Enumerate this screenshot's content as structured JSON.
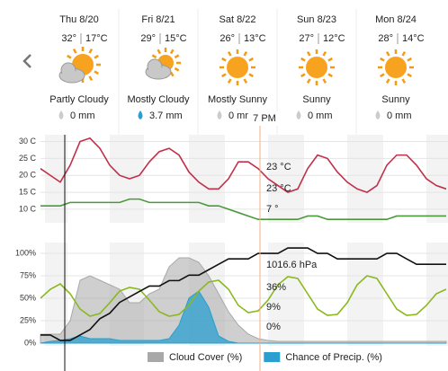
{
  "days": [
    {
      "name": "Thu 8/20",
      "high": "32°",
      "low": "17°C",
      "condition": "Partly Cloudy",
      "precip": "0 mm"
    },
    {
      "name": "Fri 8/21",
      "high": "29°",
      "low": "15°C",
      "condition": "Mostly Cloudy",
      "precip": "3.7 mm"
    },
    {
      "name": "Sat 8/22",
      "high": "26°",
      "low": "13°C",
      "condition": "Mostly Sunny",
      "precip": "0 mm"
    },
    {
      "name": "Sun 8/23",
      "high": "27°",
      "low": "12°C",
      "condition": "Sunny",
      "precip": "0 mm"
    },
    {
      "name": "Mon 8/24",
      "high": "28°",
      "low": "14°C",
      "condition": "Sunny",
      "precip": "0 mm"
    }
  ],
  "cursor": {
    "time": "7 PM",
    "labels": [
      {
        "text": "23 °C",
        "color": "#b0407a"
      },
      {
        "text": "23 °C",
        "color": "#c0304a"
      },
      {
        "text": "7 °",
        "color": "#4a9a3a"
      },
      {
        "text": "1016.6 hPa",
        "color": "#111111"
      },
      {
        "text": "36%",
        "color": "#8ab81e"
      },
      {
        "text": "9%",
        "color": "#888888"
      },
      {
        "text": "0%",
        "color": "#2a9fd0"
      }
    ]
  },
  "chart_data": [
    {
      "type": "line",
      "ylim": [
        6,
        32
      ],
      "yticks": [
        {
          "value": 30,
          "label": "30 C"
        },
        {
          "value": 25,
          "label": "25 C"
        },
        {
          "value": 20,
          "label": "20 C"
        },
        {
          "value": 15,
          "label": "15 C"
        },
        {
          "value": 10,
          "label": "10 C"
        }
      ],
      "series": [
        {
          "color": "#c0304a",
          "values": [
            22,
            20,
            18,
            23,
            30,
            31,
            28,
            23,
            20,
            19,
            20,
            24,
            27,
            28,
            26,
            21,
            18,
            16,
            16,
            19,
            24,
            24,
            22,
            19,
            17,
            15,
            16,
            22,
            26,
            25,
            21,
            18,
            16,
            15,
            17,
            23,
            26,
            26,
            23,
            19,
            17,
            16
          ]
        },
        {
          "color": "#4a9a3a",
          "values": [
            11,
            11,
            11,
            12,
            12,
            12,
            12,
            12,
            12,
            13,
            13,
            12,
            12,
            12,
            12,
            12,
            12,
            11,
            11,
            10,
            9,
            8,
            7,
            7,
            7,
            7,
            7,
            8,
            8,
            7,
            7,
            7,
            7,
            7,
            7,
            7,
            8,
            8,
            8,
            8,
            8,
            8
          ]
        }
      ]
    },
    {
      "type": "line",
      "ylim": [
        -3,
        112
      ],
      "y2lim": [
        1000,
        1019
      ],
      "yticks": [
        {
          "value": 100,
          "label": "100%"
        },
        {
          "value": 75,
          "label": "75%"
        },
        {
          "value": 50,
          "label": "50%"
        },
        {
          "value": 25,
          "label": "25%"
        },
        {
          "value": 0,
          "label": "0%"
        }
      ],
      "series": [
        {
          "name": "Cloud Cover (%)",
          "type": "area",
          "color": "#a8a8a8",
          "values": [
            10,
            10,
            10,
            25,
            70,
            75,
            70,
            65,
            60,
            45,
            45,
            55,
            60,
            85,
            95,
            95,
            90,
            75,
            55,
            35,
            20,
            10,
            5,
            3,
            2,
            2,
            2,
            2,
            2,
            2,
            2,
            2,
            2,
            2,
            2,
            2,
            2,
            2,
            2,
            2,
            2,
            2
          ]
        },
        {
          "name": "Chance of Precip. (%)",
          "type": "area",
          "color": "#2a9fd0",
          "values": [
            0,
            2,
            3,
            5,
            8,
            5,
            5,
            5,
            3,
            3,
            3,
            3,
            3,
            5,
            20,
            50,
            58,
            40,
            8,
            2,
            0,
            0,
            0,
            0,
            0,
            0,
            0,
            0,
            0,
            0,
            0,
            0,
            0,
            0,
            0,
            0,
            0,
            0,
            0,
            0,
            0,
            0
          ]
        },
        {
          "type": "line",
          "color": "#8ab81e",
          "values": [
            50,
            60,
            66,
            55,
            38,
            30,
            33,
            45,
            58,
            62,
            60,
            48,
            35,
            30,
            32,
            42,
            58,
            68,
            70,
            60,
            42,
            34,
            36,
            48,
            65,
            74,
            72,
            55,
            38,
            31,
            32,
            45,
            65,
            75,
            72,
            55,
            38,
            31,
            32,
            42,
            55,
            60
          ]
        },
        {
          "type": "line",
          "axis": "y2",
          "color": "#111111",
          "values": [
            1002,
            1002,
            1001,
            1001,
            1002,
            1003,
            1005,
            1006,
            1008,
            1009,
            1010,
            1011,
            1011,
            1012,
            1012,
            1013,
            1013,
            1014,
            1015,
            1016,
            1016,
            1016,
            1017,
            1017,
            1017,
            1018,
            1018,
            1018,
            1017,
            1017,
            1016,
            1016,
            1016,
            1016,
            1016,
            1017,
            1017,
            1016,
            1015,
            1015,
            1015,
            1015
          ]
        }
      ]
    }
  ]
}
